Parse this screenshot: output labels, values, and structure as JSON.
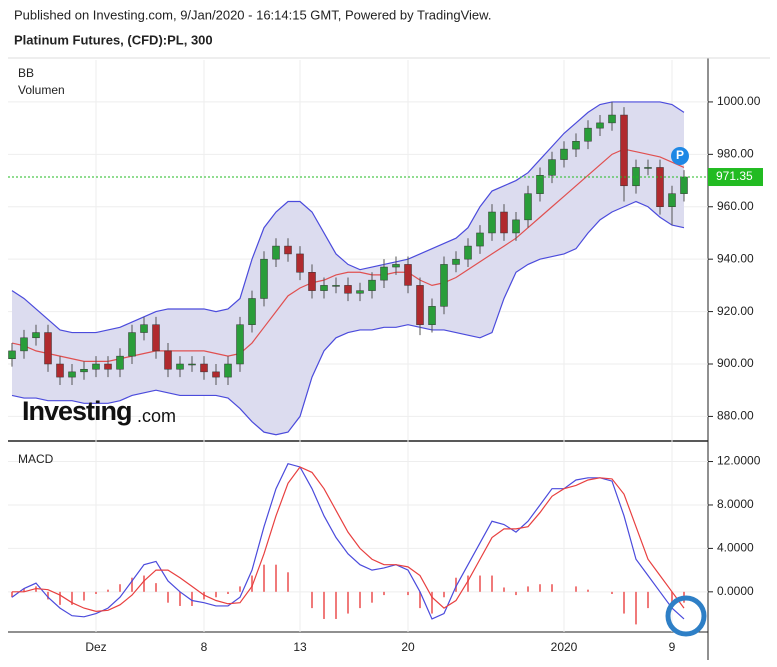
{
  "header": {
    "published": "Published on Investing.com, 9/Jan/2020 - 16:14:15 GMT, Powered by TradingView.",
    "title": "Platinum Futures, (CFD):PL, 300"
  },
  "logo": {
    "brand": "Investing",
    "suffix": ".com"
  },
  "chart_data": [
    {
      "type": "candlestick",
      "indicators": [
        "BB",
        "Volumen"
      ],
      "categories": [
        null,
        null,
        null,
        null,
        null,
        null,
        null,
        "Dez",
        null,
        null,
        null,
        null,
        null,
        null,
        null,
        null,
        "8",
        null,
        null,
        null,
        null,
        null,
        null,
        null,
        "13",
        null,
        null,
        null,
        null,
        null,
        null,
        null,
        null,
        "20",
        null,
        null,
        null,
        null,
        null,
        null,
        null,
        null,
        null,
        null,
        null,
        null,
        "2020",
        null,
        null,
        null,
        null,
        null,
        null,
        null,
        null,
        "9",
        null
      ],
      "open": [
        902,
        905,
        910,
        912,
        900,
        895,
        897,
        898,
        900,
        898,
        903,
        912,
        915,
        905,
        898,
        900,
        900,
        897,
        895,
        900,
        915,
        925,
        940,
        945,
        942,
        935,
        928,
        930,
        930,
        927,
        928,
        932,
        937,
        938,
        930,
        915,
        922,
        938,
        940,
        945,
        950,
        958,
        950,
        955,
        965,
        972,
        978,
        982,
        985,
        990,
        992,
        995,
        968,
        975,
        975,
        960,
        965
      ],
      "high": [
        908,
        913,
        915,
        915,
        903,
        900,
        901,
        903,
        903,
        906,
        915,
        918,
        918,
        908,
        903,
        903,
        903,
        900,
        903,
        918,
        928,
        943,
        948,
        948,
        945,
        938,
        933,
        933,
        933,
        931,
        935,
        940,
        941,
        941,
        933,
        925,
        941,
        943,
        948,
        953,
        961,
        961,
        958,
        968,
        975,
        981,
        985,
        988,
        993,
        995,
        1000,
        998,
        978,
        978,
        978,
        968,
        974
      ],
      "low": [
        899,
        902,
        907,
        897,
        892,
        892,
        894,
        895,
        895,
        895,
        900,
        909,
        902,
        895,
        895,
        897,
        894,
        892,
        892,
        897,
        912,
        922,
        937,
        939,
        932,
        925,
        925,
        927,
        924,
        924,
        925,
        929,
        934,
        927,
        911,
        912,
        919,
        935,
        937,
        942,
        947,
        947,
        947,
        952,
        962,
        969,
        975,
        979,
        982,
        987,
        989,
        962,
        965,
        972,
        957,
        953,
        962
      ],
      "close": [
        905,
        910,
        912,
        900,
        895,
        897,
        898,
        900,
        898,
        903,
        912,
        915,
        905,
        898,
        900,
        900,
        897,
        895,
        900,
        915,
        925,
        940,
        945,
        942,
        935,
        928,
        930,
        930,
        927,
        928,
        932,
        937,
        938,
        930,
        915,
        922,
        938,
        940,
        945,
        950,
        958,
        950,
        955,
        965,
        972,
        978,
        982,
        985,
        990,
        992,
        995,
        968,
        975,
        975,
        960,
        965,
        971.35
      ],
      "up_color": "#2a9d3a",
      "down_color": "#b02a2e",
      "series": [
        {
          "color": "#4b4bdc",
          "values": [
            928,
            925,
            921,
            917,
            913,
            912,
            912,
            912,
            913,
            914,
            916,
            918,
            920,
            921,
            921,
            921,
            921,
            920,
            921,
            925,
            940,
            952,
            958,
            962,
            962,
            958,
            950,
            942,
            938,
            936,
            937,
            938,
            939,
            940,
            942,
            944,
            946,
            948,
            952,
            960,
            966,
            968,
            970,
            973,
            978,
            983,
            988,
            992,
            996,
            999,
            1000,
            1000,
            1000,
            1000,
            1000,
            999,
            996
          ]
        },
        {
          "color": "#e05050",
          "values": [
            908,
            907,
            905,
            904,
            903,
            902,
            901,
            901,
            901,
            902,
            903,
            904,
            905,
            905,
            905,
            905,
            905,
            904,
            903,
            904,
            908,
            914,
            920,
            926,
            929,
            931,
            932,
            934,
            935,
            935,
            934,
            934,
            935,
            935,
            932,
            930,
            931,
            933,
            936,
            939,
            942,
            945,
            948,
            952,
            956,
            960,
            964,
            968,
            972,
            976,
            980,
            982,
            981,
            980,
            979,
            977,
            975
          ]
        },
        {
          "color": "#4b4bdc",
          "values": [
            888,
            887,
            887,
            886,
            886,
            886,
            885,
            885,
            885,
            886,
            888,
            889,
            890,
            889,
            888,
            888,
            888,
            888,
            887,
            883,
            878,
            874,
            873,
            874,
            880,
            895,
            905,
            910,
            912,
            913,
            913,
            914,
            914,
            915,
            914,
            913,
            913,
            912,
            911,
            910,
            912,
            925,
            935,
            938,
            940,
            941,
            942,
            944,
            950,
            955,
            958,
            960,
            962,
            960,
            956,
            953,
            952
          ]
        }
      ],
      "band_color": "#dcdcef",
      "current_price": 971.35,
      "current_color": "#22bb22",
      "marker_label": "P",
      "ylim": [
        871,
        1016
      ],
      "yticks": [
        {
          "value": 880,
          "label": "880.00"
        },
        {
          "value": 900,
          "label": "900.00"
        },
        {
          "value": 920,
          "label": "920.00"
        },
        {
          "value": 940,
          "label": "940.00"
        },
        {
          "value": 960,
          "label": "960.00"
        },
        {
          "value": 980,
          "label": "980.00"
        },
        {
          "value": 1000,
          "label": "1000.00"
        }
      ],
      "grid": true
    },
    {
      "type": "macd",
      "title": "MACD",
      "series": [
        {
          "color": "#4b4bdc",
          "values": [
            -0.5,
            0.3,
            0.8,
            -0.5,
            -1.5,
            -2.2,
            -2.3,
            -2,
            -1.5,
            -0.5,
            1,
            2.5,
            2.8,
            1,
            0,
            -0.8,
            -1,
            -1.3,
            -1.3,
            -0.5,
            2,
            6,
            9.5,
            11.8,
            11.5,
            9.5,
            7,
            5,
            3.5,
            2.5,
            2,
            2.2,
            2.5,
            2,
            0,
            -2.5,
            -2,
            0.5,
            2.5,
            4.5,
            6.5,
            6.2,
            5.5,
            6.5,
            8,
            9.5,
            9.5,
            10.3,
            10.5,
            10.5,
            10.2,
            7,
            3,
            1.5,
            0,
            -1.5,
            -2.5
          ]
        },
        {
          "color": "#e84040",
          "values": [
            0,
            0,
            0.3,
            0.2,
            -0.3,
            -1,
            -1.5,
            -1.8,
            -1.7,
            -1.2,
            -0.3,
            1,
            2,
            2,
            1.3,
            0.5,
            -0.3,
            -0.8,
            -1.1,
            -1,
            0.5,
            3.5,
            7,
            10,
            11.5,
            11,
            9.5,
            7.5,
            5.5,
            4,
            3,
            2.5,
            2.5,
            2.3,
            1.5,
            -0.5,
            -1.5,
            -0.8,
            1,
            3,
            5,
            5.8,
            5.8,
            6,
            7.3,
            8.8,
            9.5,
            9.8,
            10.3,
            10.5,
            10.4,
            9,
            6,
            3,
            1.5,
            0,
            -1.5
          ]
        }
      ],
      "histogram": {
        "color": "#f07a7a",
        "values": [
          -0.5,
          0.3,
          0.5,
          -0.7,
          -1.2,
          -1.2,
          -0.8,
          -0.2,
          0.2,
          0.7,
          1.3,
          1.5,
          0.8,
          -1,
          -1.3,
          -1.3,
          -0.7,
          -0.5,
          -0.2,
          0.5,
          1.5,
          2.5,
          2.5,
          1.8,
          0,
          -1.5,
          -2.5,
          -2.5,
          -2,
          -1.5,
          -1,
          -0.3,
          0,
          -0.3,
          -1.5,
          -2,
          -0.5,
          1.3,
          1.5,
          1.5,
          1.5,
          0.4,
          -0.3,
          0.5,
          0.7,
          0.7,
          0,
          0.5,
          0.2,
          0,
          -0.2,
          -2,
          -3,
          -1.5,
          0,
          -1.5,
          -1
        ]
      },
      "ylim": [
        -3.7,
        13.8
      ],
      "yticks": [
        {
          "value": 0,
          "label": "0.0000"
        },
        {
          "value": 4,
          "label": "4.0000"
        },
        {
          "value": 8,
          "label": "8.0000"
        },
        {
          "value": 12,
          "label": "12.0000"
        }
      ],
      "grid": true
    }
  ]
}
